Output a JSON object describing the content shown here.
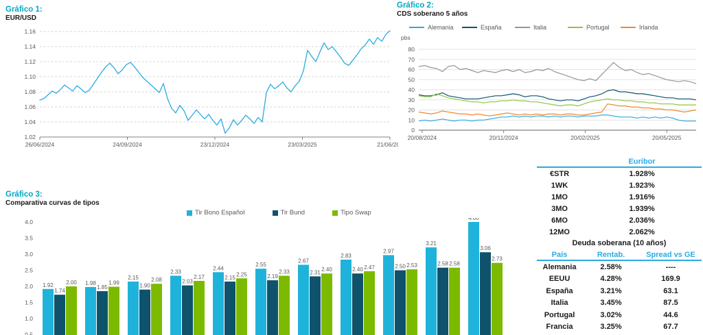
{
  "accent_colors": {
    "title_teal": "#00A9C4",
    "table_cyan": "#29ABE2"
  },
  "chart_data": [
    {
      "id": "grafico1",
      "type": "line",
      "title": "Gráfico 1:",
      "subtitle": "EUR/USD",
      "ylim": [
        1.02,
        1.16
      ],
      "yticks": [
        "1.16",
        "1.14",
        "1.12",
        "1.10",
        "1.08",
        "1.06",
        "1.04",
        "1.02"
      ],
      "xticks": [
        "26/06/2024",
        "24/09/2024",
        "23/12/2024",
        "23/03/2025",
        "21/06/202"
      ],
      "grid": "dashed-horizontal",
      "legend_position": "none",
      "series": [
        {
          "name": "EUR/USD",
          "color": "#29ABE2",
          "values": [
            1.069,
            1.071,
            1.076,
            1.081,
            1.078,
            1.083,
            1.089,
            1.085,
            1.081,
            1.088,
            1.084,
            1.079,
            1.082,
            1.09,
            1.098,
            1.106,
            1.113,
            1.118,
            1.112,
            1.104,
            1.109,
            1.116,
            1.119,
            1.113,
            1.106,
            1.099,
            1.094,
            1.089,
            1.084,
            1.079,
            1.091,
            1.071,
            1.058,
            1.052,
            1.062,
            1.055,
            1.042,
            1.049,
            1.056,
            1.05,
            1.044,
            1.05,
            1.042,
            1.036,
            1.044,
            1.025,
            1.032,
            1.043,
            1.036,
            1.042,
            1.049,
            1.044,
            1.038,
            1.046,
            1.04,
            1.079,
            1.09,
            1.084,
            1.088,
            1.093,
            1.085,
            1.08,
            1.088,
            1.094,
            1.108,
            1.135,
            1.127,
            1.12,
            1.133,
            1.145,
            1.136,
            1.14,
            1.133,
            1.126,
            1.118,
            1.115,
            1.122,
            1.129,
            1.137,
            1.142,
            1.15,
            1.143,
            1.152,
            1.147,
            1.156,
            1.161
          ]
        }
      ]
    },
    {
      "id": "grafico2",
      "type": "line",
      "title": "Gráfico 2:",
      "subtitle": "CDS soberano 5 años",
      "unit": "pbs",
      "ylim": [
        0,
        80
      ],
      "yticks": [
        80,
        70,
        60,
        50,
        40,
        30,
        20,
        10,
        0
      ],
      "xticks": [
        "20/08/2024",
        "20/11/2024",
        "20/02/2025",
        "20/05/2025"
      ],
      "grid": "solid-horizontal",
      "legend_position": "top",
      "series": [
        {
          "name": "Alemania",
          "color": "#29ABE2",
          "values": [
            9,
            10,
            9,
            10,
            11,
            10,
            9,
            10,
            10,
            9,
            10,
            10,
            11,
            12,
            13,
            13,
            14,
            13,
            14,
            13,
            14,
            14,
            13,
            14,
            13,
            14,
            14,
            13,
            14,
            14,
            14,
            15,
            15,
            14,
            13,
            13,
            13,
            12,
            13,
            12,
            13,
            12,
            13,
            12,
            10,
            9,
            9,
            9
          ]
        },
        {
          "name": "España",
          "color": "#0E536B",
          "values": [
            35,
            34,
            34,
            35,
            37,
            34,
            33,
            32,
            31,
            31,
            31,
            32,
            33,
            34,
            34,
            35,
            36,
            35,
            33,
            34,
            34,
            33,
            31,
            30,
            29,
            30,
            30,
            29,
            31,
            33,
            34,
            36,
            39,
            40,
            38,
            38,
            37,
            36,
            36,
            35,
            34,
            33,
            32,
            32,
            31,
            31,
            31,
            30
          ]
        },
        {
          "name": "Italia",
          "color": "#969696",
          "values": [
            63,
            64,
            62,
            61,
            58,
            63,
            64,
            60,
            61,
            59,
            57,
            59,
            58,
            57,
            59,
            60,
            58,
            60,
            57,
            58,
            60,
            59,
            61,
            58,
            56,
            54,
            52,
            50,
            49,
            51,
            49,
            55,
            61,
            67,
            62,
            59,
            60,
            57,
            55,
            56,
            54,
            52,
            50,
            49,
            48,
            49,
            48,
            46
          ]
        },
        {
          "name": "Portugal",
          "color": "#8CC63F",
          "values": [
            34,
            33,
            33,
            36,
            34,
            32,
            31,
            30,
            29,
            28,
            28,
            27,
            28,
            28,
            29,
            29,
            30,
            29,
            29,
            28,
            28,
            27,
            26,
            25,
            24,
            25,
            25,
            24,
            26,
            28,
            29,
            30,
            31,
            30,
            30,
            29,
            29,
            28,
            28,
            27,
            27,
            26,
            26,
            26,
            25,
            25,
            25,
            25
          ]
        },
        {
          "name": "Irlanda",
          "color": "#F0882C",
          "values": [
            18,
            17,
            16,
            17,
            19,
            18,
            17,
            16,
            16,
            15,
            16,
            15,
            14,
            15,
            16,
            17,
            16,
            15,
            16,
            15,
            16,
            15,
            16,
            16,
            15,
            16,
            16,
            15,
            15,
            16,
            17,
            18,
            26,
            25,
            24,
            24,
            23,
            23,
            22,
            22,
            21,
            21,
            20,
            20,
            19,
            18,
            19,
            20
          ]
        }
      ]
    },
    {
      "id": "grafico3",
      "type": "bar",
      "title": "Gráfico 3:",
      "subtitle": "Comparativa curvas de tipos",
      "ylim_visible": [
        0.5,
        4.0
      ],
      "yticks": [
        "4.0",
        "3.5",
        "3.0",
        "2.5",
        "2.0",
        "1.5",
        "1.0",
        "0.5"
      ],
      "grid": "off",
      "legend_position": "top",
      "bar_labels_visible": true,
      "series": [
        {
          "name": "Tir Bono Español",
          "color": "#1FB3DB",
          "values": [
            1.92,
            1.98,
            2.15,
            2.33,
            2.44,
            2.55,
            2.67,
            2.83,
            2.97,
            3.21,
            4.0
          ]
        },
        {
          "name": "Tir Bund",
          "color": "#0E536B",
          "values": [
            1.74,
            1.85,
            1.9,
            2.03,
            2.15,
            2.19,
            2.31,
            2.4,
            2.5,
            2.58,
            3.06
          ]
        },
        {
          "name": "Tipo Swap",
          "color": "#7CBA00",
          "values": [
            2.0,
            1.99,
            2.08,
            2.17,
            2.25,
            2.33,
            2.4,
            2.47,
            2.53,
            2.58,
            2.73
          ]
        }
      ]
    },
    {
      "id": "rates-table",
      "type": "table",
      "euribor": {
        "header": "Euribor",
        "rows": [
          [
            "€STR",
            "1.928%"
          ],
          [
            "1WK",
            "1.923%"
          ],
          [
            "1MO",
            "1.916%"
          ],
          [
            "3MO",
            "1.939%"
          ],
          [
            "6MO",
            "2.036%"
          ],
          [
            "12MO",
            "2.062%"
          ]
        ]
      },
      "deuda": {
        "title": "Deuda soberana (10 años)",
        "headers": [
          "País",
          "Rentab.",
          "Spread vs GE"
        ],
        "rows": [
          [
            "Alemania",
            "2.58%",
            "----"
          ],
          [
            "EEUU",
            "4.28%",
            "169.9"
          ],
          [
            "España",
            "3.21%",
            "63.1"
          ],
          [
            "Italia",
            "3.45%",
            "87.5"
          ],
          [
            "Portugal",
            "3.02%",
            "44.6"
          ],
          [
            "Francia",
            "3.25%",
            "67.7"
          ]
        ]
      }
    }
  ]
}
